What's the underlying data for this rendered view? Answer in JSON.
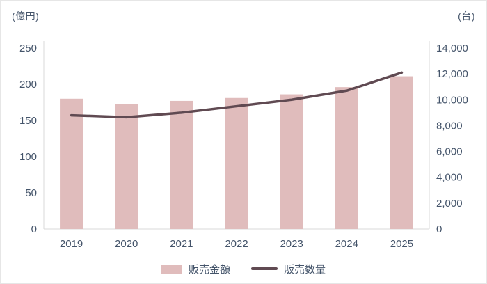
{
  "chart_data": {
    "type": "combo-bar-line",
    "categories": [
      "2019",
      "2020",
      "2021",
      "2022",
      "2023",
      "2024",
      "2025"
    ],
    "series": [
      {
        "name": "販売金額",
        "type": "bar",
        "axis": "left",
        "color": "#e0bcbc",
        "values": [
          180,
          173,
          177,
          181,
          186,
          196,
          211
        ]
      },
      {
        "name": "販売数量",
        "type": "line",
        "axis": "right",
        "color": "#604a52",
        "values": [
          8800,
          8650,
          9000,
          9500,
          10000,
          10700,
          12100
        ]
      }
    ],
    "left_axis": {
      "label": "(億円)",
      "min": 0,
      "max": 250,
      "step": 50
    },
    "right_axis": {
      "label": "(台)",
      "min": 0,
      "max": 14000,
      "step": 2000
    },
    "legend_position": "bottom",
    "grid": false,
    "title": "",
    "xlabel": "",
    "ylabel_left": "(億円)",
    "ylabel_right": "(台)"
  },
  "styles": {
    "text_color": "#44546a",
    "axis_line_color": "#d9d9d9",
    "background": "#ffffff"
  }
}
